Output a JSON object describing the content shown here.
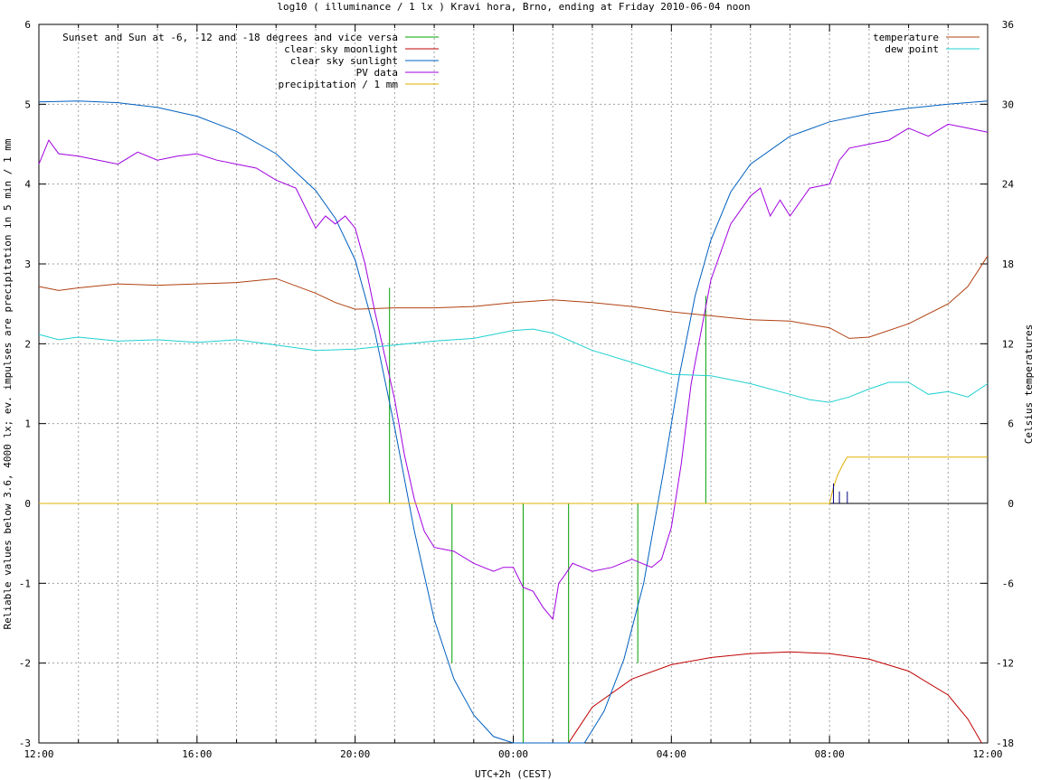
{
  "chart_data": {
    "type": "line",
    "title": "log10 ( illuminance / 1 lx ) Kravi hora, Brno, ending at Friday 2010-06-04 noon",
    "xlabel": "UTC+2h (CEST)",
    "ylabel": "Reliable values below 3.6, 4000 lx; ev. impulses are precipitation in 5 min / 1 mm",
    "y2label": "Celsius temperatures",
    "x_unit": "hours since 2010-06-03 12:00",
    "xlim": [
      0,
      24
    ],
    "ylim": [
      -3,
      6
    ],
    "y2lim": [
      -18,
      36
    ],
    "x_ticks": [
      {
        "v": 0,
        "label": "12:00"
      },
      {
        "v": 4,
        "label": "16:00"
      },
      {
        "v": 8,
        "label": "20:00"
      },
      {
        "v": 12,
        "label": "00:00"
      },
      {
        "v": 16,
        "label": "04:00"
      },
      {
        "v": 20,
        "label": "08:00"
      },
      {
        "v": 24,
        "label": "12:00"
      }
    ],
    "y_ticks": [
      "-3",
      "-2",
      "-1",
      "0",
      "1",
      "2",
      "3",
      "4",
      "5",
      "6"
    ],
    "y2_ticks": [
      "-18",
      "-12",
      "-6",
      "0",
      "6",
      "12",
      "18",
      "24",
      "30",
      "36"
    ],
    "grid": true,
    "legend_left_position": "top-left",
    "legend_right_position": "top-right",
    "series": [
      {
        "name": "Sunset and Sun at -6, -12 and -18 degrees and vice versa",
        "color": "#00a000",
        "axis": "left",
        "style": "impulses",
        "x": [
          8.87,
          9.6,
          10.45,
          12.25,
          13.4,
          15.15,
          16.87
        ],
        "y": [
          2.7,
          0.0,
          -2.0,
          -3.0,
          -3.0,
          -2.0,
          2.6
        ]
      },
      {
        "name": "clear sky moonlight",
        "color": "#c00000",
        "axis": "left",
        "style": "line",
        "x": [
          13.4,
          14.0,
          15.0,
          16.0,
          17.0,
          18.0,
          19.0,
          20.0,
          21.0,
          22.0,
          23.0,
          23.5,
          23.85
        ],
        "y": [
          -3.0,
          -2.55,
          -2.2,
          -2.02,
          -1.93,
          -1.88,
          -1.86,
          -1.88,
          -1.95,
          -2.1,
          -2.4,
          -2.7,
          -3.0
        ]
      },
      {
        "name": "clear sky sunlight",
        "color": "#0060c0",
        "axis": "left",
        "style": "line",
        "x": [
          0,
          1,
          2,
          3,
          4,
          5,
          6,
          7,
          7.5,
          8,
          8.5,
          9,
          9.5,
          10,
          10.5,
          11,
          11.5,
          12,
          12.4,
          13.8,
          14.3,
          14.8,
          15.3,
          15.8,
          16.2,
          16.6,
          17,
          17.5,
          18,
          19,
          20,
          21,
          22,
          23,
          24
        ],
        "y": [
          5.03,
          5.04,
          5.02,
          4.96,
          4.85,
          4.66,
          4.38,
          3.92,
          3.57,
          3.05,
          2.15,
          0.95,
          -0.35,
          -1.45,
          -2.2,
          -2.65,
          -2.92,
          -3.0,
          -3.0,
          -3.0,
          -2.6,
          -1.95,
          -1.0,
          0.4,
          1.6,
          2.6,
          3.3,
          3.9,
          4.25,
          4.6,
          4.78,
          4.88,
          4.95,
          5.0,
          5.04
        ]
      },
      {
        "name": "PV data",
        "color": "#a000e0",
        "axis": "left",
        "style": "line",
        "x": [
          0,
          0.25,
          0.5,
          1,
          1.5,
          2,
          2.5,
          3,
          3.5,
          4,
          4.5,
          5,
          5.5,
          6,
          6.5,
          7,
          7.25,
          7.5,
          7.75,
          8,
          8.25,
          8.5,
          8.75,
          9,
          9.25,
          9.5,
          9.75,
          10,
          10.5,
          11,
          11.25,
          11.5,
          11.75,
          12,
          12.25,
          12.5,
          12.75,
          13,
          13.15,
          13.3,
          13.5,
          13.75,
          14,
          14.5,
          15,
          15.5,
          15.75,
          16,
          16.25,
          16.5,
          17,
          17.5,
          18,
          18.25,
          18.5,
          18.75,
          19,
          19.5,
          20,
          20.25,
          20.5,
          21,
          21.5,
          22,
          22.5,
          23,
          23.5,
          24
        ],
        "y": [
          4.25,
          4.55,
          4.38,
          4.35,
          4.3,
          4.25,
          4.4,
          4.3,
          4.35,
          4.38,
          4.3,
          4.25,
          4.2,
          4.05,
          3.95,
          3.45,
          3.6,
          3.5,
          3.6,
          3.45,
          3.0,
          2.4,
          1.85,
          1.3,
          0.6,
          0.05,
          -0.35,
          -0.55,
          -0.6,
          -0.75,
          -0.8,
          -0.85,
          -0.8,
          -0.8,
          -1.05,
          -1.1,
          -1.3,
          -1.45,
          -1.0,
          -0.9,
          -0.75,
          -0.8,
          -0.85,
          -0.8,
          -0.7,
          -0.8,
          -0.7,
          -0.3,
          0.5,
          1.5,
          2.8,
          3.5,
          3.85,
          3.95,
          3.6,
          3.8,
          3.6,
          3.95,
          4.0,
          4.3,
          4.45,
          4.5,
          4.55,
          4.7,
          4.6,
          4.75,
          4.7,
          4.65
        ]
      },
      {
        "name": "precipitation / 1 mm",
        "color": "#e0b000",
        "axis": "left",
        "style": "line",
        "x": [
          0,
          20.0,
          20.1,
          20.2,
          20.35,
          20.45,
          21,
          22,
          23,
          24
        ],
        "y": [
          0,
          0,
          0.2,
          0.35,
          0.5,
          0.58,
          0.58,
          0.58,
          0.58,
          0.58
        ]
      },
      {
        "name": "temperature",
        "color": "#b04010",
        "axis": "right",
        "style": "line",
        "x": [
          0,
          0.5,
          1,
          2,
          3,
          4,
          5,
          6,
          7,
          7.5,
          8,
          9,
          10,
          11,
          12,
          13,
          14,
          15,
          16,
          17,
          18,
          19,
          20,
          20.5,
          21,
          22,
          23,
          23.5,
          24
        ],
        "y": [
          16.3,
          16.0,
          16.2,
          16.5,
          16.4,
          16.5,
          16.6,
          16.9,
          15.8,
          15.1,
          14.6,
          14.7,
          14.7,
          14.8,
          15.1,
          15.3,
          15.1,
          14.8,
          14.4,
          14.1,
          13.8,
          13.7,
          13.2,
          12.4,
          12.5,
          13.5,
          15.0,
          16.3,
          18.6
        ]
      },
      {
        "name": "dew point",
        "color": "#20d0d0",
        "axis": "right",
        "style": "line",
        "x": [
          0,
          0.5,
          1,
          2,
          3,
          4,
          5,
          6,
          7,
          8,
          9,
          10,
          11,
          12,
          12.5,
          13,
          14,
          15,
          16,
          17,
          18,
          19,
          19.5,
          20,
          20.5,
          21,
          21.5,
          22,
          22.5,
          23,
          23.5,
          24
        ],
        "y": [
          12.7,
          12.3,
          12.5,
          12.2,
          12.3,
          12.1,
          12.3,
          11.9,
          11.5,
          11.6,
          11.9,
          12.2,
          12.4,
          13.0,
          13.1,
          12.8,
          11.5,
          10.6,
          9.7,
          9.6,
          9.0,
          8.2,
          7.8,
          7.6,
          8.0,
          8.6,
          9.1,
          9.1,
          8.2,
          8.4,
          8.0,
          9.0
        ]
      }
    ],
    "impulses_extra": {
      "name": "precipitation impulses",
      "color": "#000080",
      "x": [
        20.1,
        20.25,
        20.45
      ],
      "y": [
        0.25,
        0.15,
        0.15
      ]
    }
  }
}
